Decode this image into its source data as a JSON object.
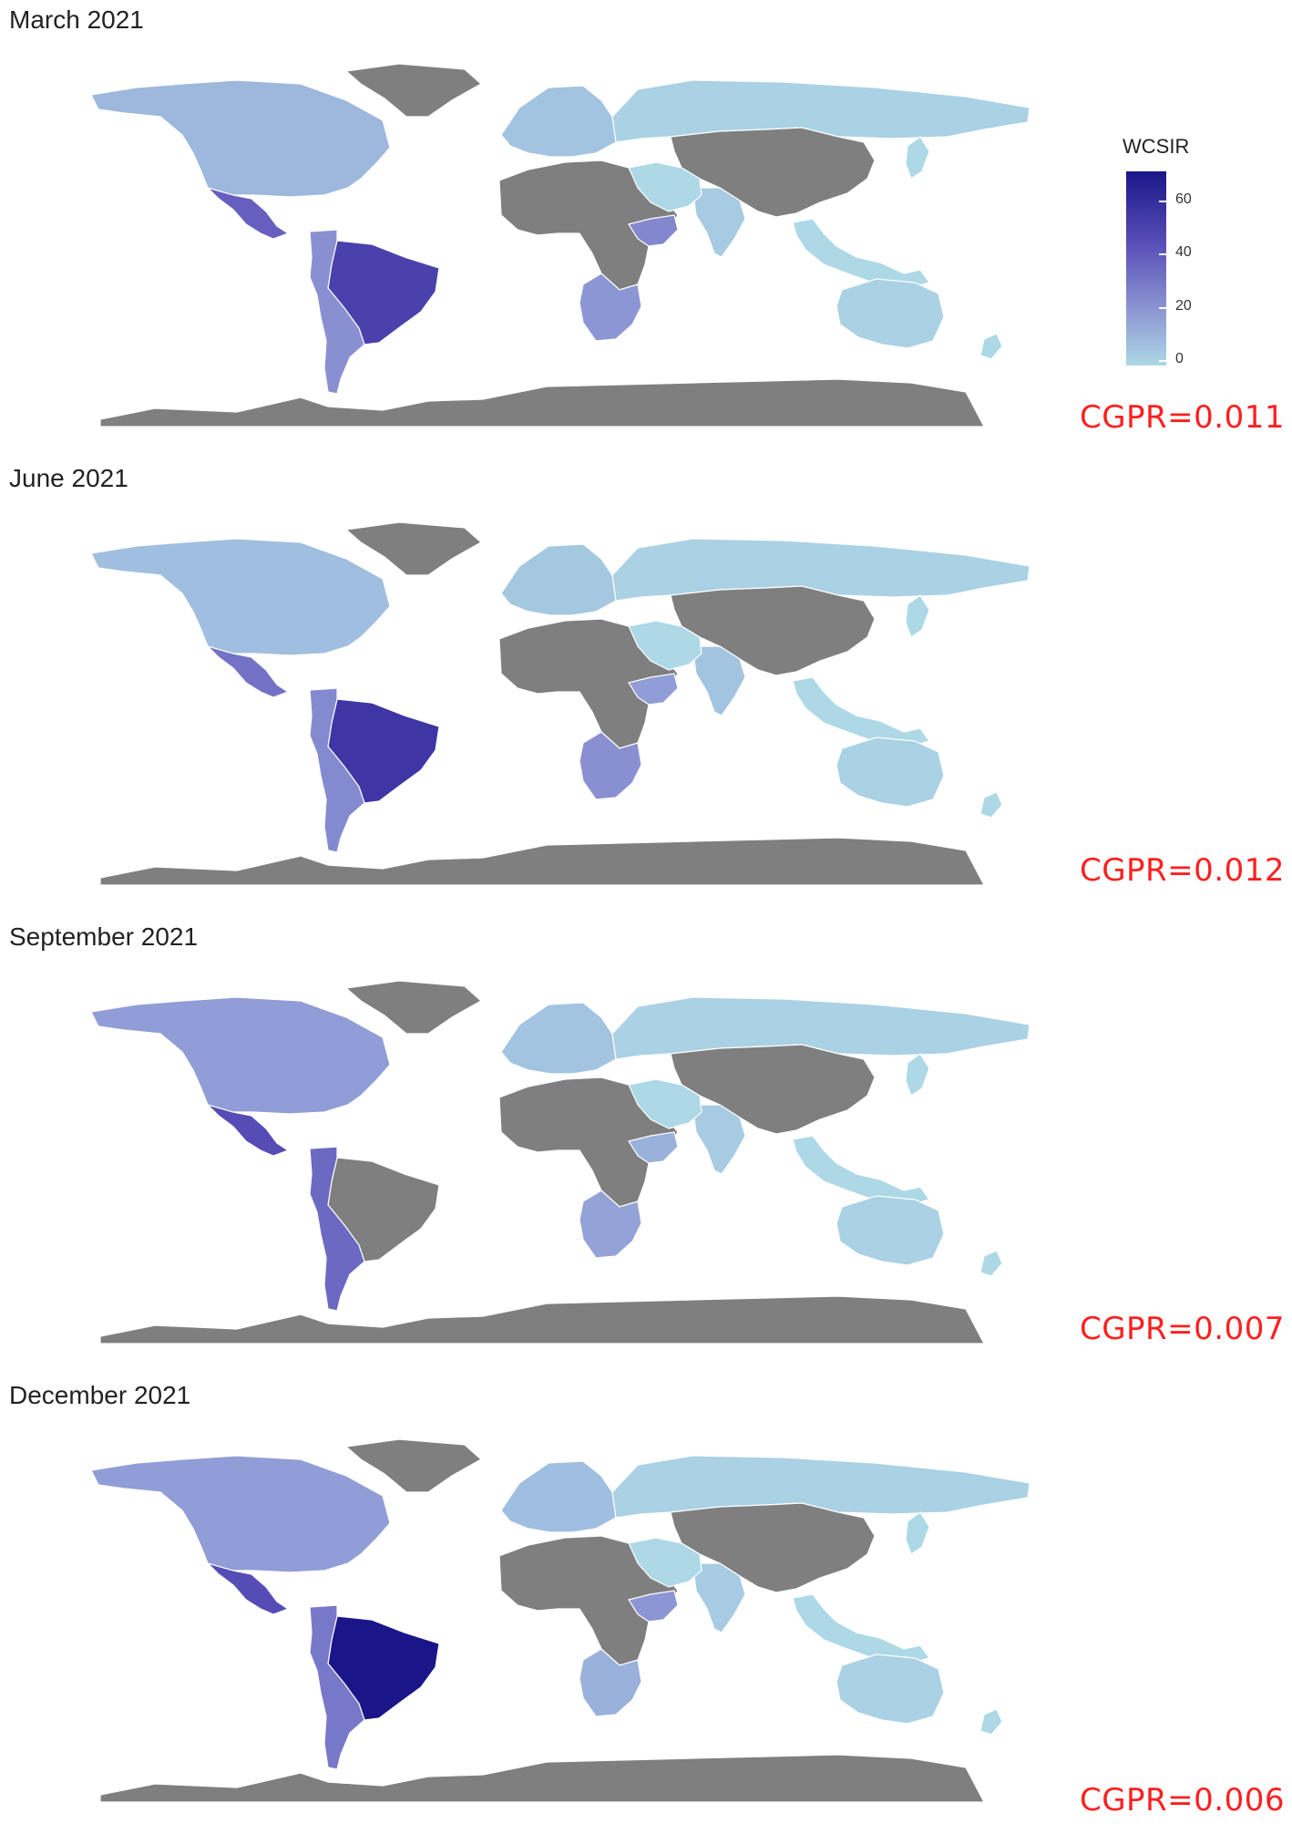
{
  "colors": {
    "background": "#ffffff",
    "no_data": "#7f7f7f",
    "cgpr_text": "#ff1f1f",
    "scale_low": "#add8e6",
    "scale_high": "#1a1689"
  },
  "legend": {
    "title": "WCSIR",
    "ticks": [
      "60",
      "40",
      "20",
      "0"
    ],
    "min": 0,
    "max": 70
  },
  "panels": [
    {
      "title": "March 2021",
      "cgpr": "CGPR=0.011",
      "values": {
        "north_america": 10,
        "mexico": 38,
        "brazil": 50,
        "south_america": 22,
        "southern_africa": 20,
        "horn_africa": 25,
        "australia": 2,
        "russia": 2,
        "europe": 6,
        "india": 4
      }
    },
    {
      "title": "June 2021",
      "cgpr": "CGPR=0.012",
      "values": {
        "north_america": 8,
        "mexico": 32,
        "brazil": 55,
        "south_america": 24,
        "southern_africa": 22,
        "horn_africa": 18,
        "australia": 2,
        "russia": 2,
        "europe": 5,
        "india": 6
      }
    },
    {
      "title": "September 2021",
      "cgpr": "CGPR=0.007",
      "values": {
        "north_america": 18,
        "mexico": 45,
        "brazil": null,
        "south_america": 35,
        "southern_africa": 16,
        "horn_africa": 12,
        "australia": 2,
        "russia": 2,
        "europe": 6,
        "india": 4
      }
    },
    {
      "title": "December 2021",
      "cgpr": "CGPR=0.006",
      "values": {
        "north_america": 18,
        "mexico": 45,
        "brazil": 70,
        "south_america": 30,
        "southern_africa": 12,
        "horn_africa": 20,
        "australia": 2,
        "russia": 2,
        "europe": 8,
        "india": 4
      }
    }
  ]
}
